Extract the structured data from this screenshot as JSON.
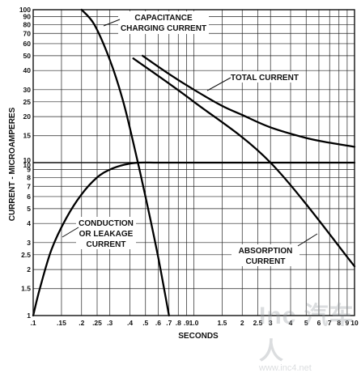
{
  "chart_data": {
    "type": "line",
    "title": "",
    "xlabel": "SECONDS",
    "ylabel": "CURRENT - MICROAMPERES",
    "xscale": "log",
    "yscale": "log",
    "xlim": [
      0.1,
      10
    ],
    "ylim": [
      1,
      100
    ],
    "grid": true,
    "x_tick_labels": [
      ".1",
      ".15",
      ".2",
      ".25",
      ".3",
      ".4",
      ".5",
      ".6",
      ".7",
      ".8",
      ".9",
      "1.0",
      "1.5",
      "2",
      "2.5",
      "3",
      "4",
      "5",
      "6",
      "7",
      "8",
      "9",
      "10"
    ],
    "y_tick_labels": [
      "1",
      "1.5",
      "2",
      "2.5",
      "3",
      "4",
      "5",
      "6",
      "7",
      "8",
      "9",
      "10",
      "10",
      "15",
      "20",
      "25",
      "30",
      "40",
      "50",
      "60",
      "70",
      "80",
      "90",
      "100"
    ],
    "series": [
      {
        "name": "CAPACITANCE CHARGING CURRENT",
        "x": [
          0.2,
          0.24,
          0.3,
          0.36,
          0.42,
          0.5,
          0.6,
          0.7
        ],
        "y": [
          100,
          80,
          47,
          26,
          13.5,
          6,
          2.4,
          1
        ]
      },
      {
        "name": "CONDUCTION OR LEAKAGE CURRENT",
        "x": [
          0.1,
          0.11,
          0.13,
          0.16,
          0.2,
          0.25,
          0.3,
          0.37,
          0.45,
          0.6,
          1.0,
          3.0,
          10
        ],
        "y": [
          1,
          1.5,
          2.7,
          4.3,
          6.2,
          8.0,
          9.0,
          9.7,
          10,
          10,
          10,
          10,
          10
        ]
      },
      {
        "name": "ABSORPTION CURRENT",
        "x": [
          0.42,
          1.0,
          3.0,
          10
        ],
        "y": [
          48,
          25,
          10,
          2.1
        ]
      },
      {
        "name": "TOTAL CURRENT",
        "x": [
          0.48,
          0.7,
          1.0,
          1.5,
          2.0,
          3.0,
          5.0,
          7.0,
          10
        ],
        "y": [
          50,
          38,
          30,
          23.5,
          20.5,
          17,
          14.5,
          13.5,
          12.7
        ]
      }
    ],
    "annotations": [
      {
        "lines": [
          "CAPACITANCE",
          "CHARGING CURRENT"
        ]
      },
      {
        "lines": [
          "TOTAL CURRENT"
        ]
      },
      {
        "lines": [
          "CONDUCTION",
          "OR LEAKAGE",
          "CURRENT"
        ]
      },
      {
        "lines": [
          "ABSORPTION",
          "CURRENT"
        ]
      }
    ]
  },
  "watermark": {
    "logo": "Inc 汽车人",
    "url": "www.inc4.net"
  }
}
